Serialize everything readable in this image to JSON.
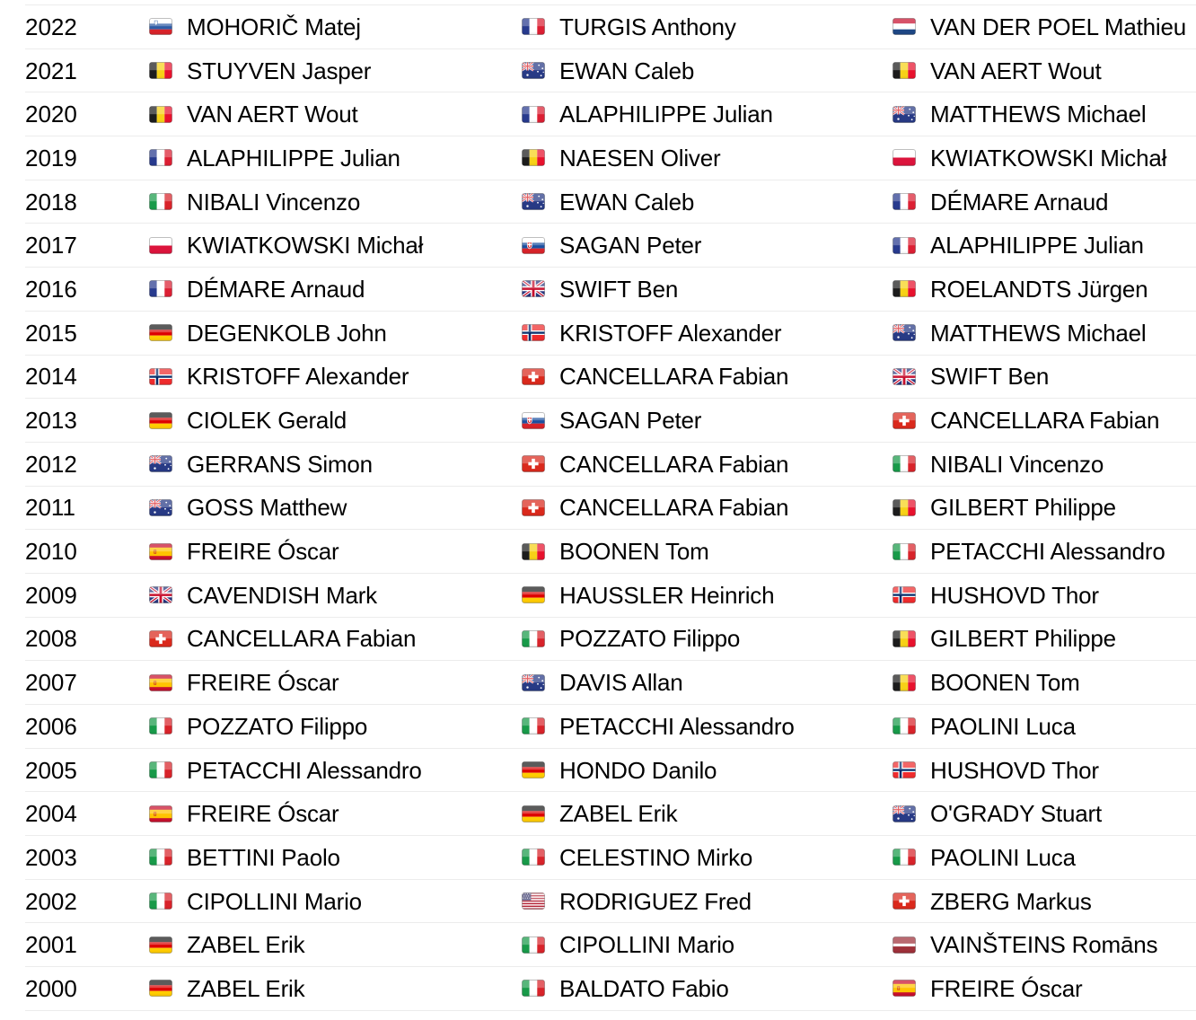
{
  "page": {
    "background_color": "#ffffff",
    "divider_color": "#ececec",
    "text_color": "#000000"
  },
  "table": {
    "description": "Race podium winners by year, columns: year, winner, second, third",
    "rows": [
      {
        "year": "2022",
        "podium": [
          {
            "flag": "si",
            "country": "Slovenia",
            "name": "MOHORIČ Matej"
          },
          {
            "flag": "fr",
            "country": "France",
            "name": "TURGIS Anthony"
          },
          {
            "flag": "nl",
            "country": "Netherlands",
            "name": "VAN DER POEL Mathieu"
          }
        ]
      },
      {
        "year": "2021",
        "podium": [
          {
            "flag": "be",
            "country": "Belgium",
            "name": "STUYVEN Jasper"
          },
          {
            "flag": "au",
            "country": "Australia",
            "name": "EWAN Caleb"
          },
          {
            "flag": "be",
            "country": "Belgium",
            "name": "VAN AERT Wout"
          }
        ]
      },
      {
        "year": "2020",
        "podium": [
          {
            "flag": "be",
            "country": "Belgium",
            "name": "VAN AERT Wout"
          },
          {
            "flag": "fr",
            "country": "France",
            "name": "ALAPHILIPPE Julian"
          },
          {
            "flag": "au",
            "country": "Australia",
            "name": "MATTHEWS Michael"
          }
        ]
      },
      {
        "year": "2019",
        "podium": [
          {
            "flag": "fr",
            "country": "France",
            "name": "ALAPHILIPPE Julian"
          },
          {
            "flag": "be",
            "country": "Belgium",
            "name": "NAESEN Oliver"
          },
          {
            "flag": "pl",
            "country": "Poland",
            "name": "KWIATKOWSKI Michał"
          }
        ]
      },
      {
        "year": "2018",
        "podium": [
          {
            "flag": "it",
            "country": "Italy",
            "name": "NIBALI Vincenzo"
          },
          {
            "flag": "au",
            "country": "Australia",
            "name": "EWAN Caleb"
          },
          {
            "flag": "fr",
            "country": "France",
            "name": "DÉMARE Arnaud"
          }
        ]
      },
      {
        "year": "2017",
        "podium": [
          {
            "flag": "pl",
            "country": "Poland",
            "name": "KWIATKOWSKI Michał"
          },
          {
            "flag": "sk",
            "country": "Slovakia",
            "name": "SAGAN Peter"
          },
          {
            "flag": "fr",
            "country": "France",
            "name": "ALAPHILIPPE Julian"
          }
        ]
      },
      {
        "year": "2016",
        "podium": [
          {
            "flag": "fr",
            "country": "France",
            "name": "DÉMARE Arnaud"
          },
          {
            "flag": "gb",
            "country": "Great Britain",
            "name": "SWIFT Ben"
          },
          {
            "flag": "be",
            "country": "Belgium",
            "name": "ROELANDTS Jürgen"
          }
        ]
      },
      {
        "year": "2015",
        "podium": [
          {
            "flag": "de",
            "country": "Germany",
            "name": "DEGENKOLB John"
          },
          {
            "flag": "no",
            "country": "Norway",
            "name": "KRISTOFF Alexander"
          },
          {
            "flag": "au",
            "country": "Australia",
            "name": "MATTHEWS Michael"
          }
        ]
      },
      {
        "year": "2014",
        "podium": [
          {
            "flag": "no",
            "country": "Norway",
            "name": "KRISTOFF Alexander"
          },
          {
            "flag": "ch",
            "country": "Switzerland",
            "name": "CANCELLARA Fabian"
          },
          {
            "flag": "gb",
            "country": "Great Britain",
            "name": "SWIFT Ben"
          }
        ]
      },
      {
        "year": "2013",
        "podium": [
          {
            "flag": "de",
            "country": "Germany",
            "name": "CIOLEK Gerald"
          },
          {
            "flag": "sk",
            "country": "Slovakia",
            "name": "SAGAN Peter"
          },
          {
            "flag": "ch",
            "country": "Switzerland",
            "name": "CANCELLARA Fabian"
          }
        ]
      },
      {
        "year": "2012",
        "podium": [
          {
            "flag": "au",
            "country": "Australia",
            "name": "GERRANS Simon"
          },
          {
            "flag": "ch",
            "country": "Switzerland",
            "name": "CANCELLARA Fabian"
          },
          {
            "flag": "it",
            "country": "Italy",
            "name": "NIBALI Vincenzo"
          }
        ]
      },
      {
        "year": "2011",
        "podium": [
          {
            "flag": "au",
            "country": "Australia",
            "name": "GOSS Matthew"
          },
          {
            "flag": "ch",
            "country": "Switzerland",
            "name": "CANCELLARA Fabian"
          },
          {
            "flag": "be",
            "country": "Belgium",
            "name": "GILBERT Philippe"
          }
        ]
      },
      {
        "year": "2010",
        "podium": [
          {
            "flag": "es",
            "country": "Spain",
            "name": "FREIRE Óscar"
          },
          {
            "flag": "be",
            "country": "Belgium",
            "name": "BOONEN Tom"
          },
          {
            "flag": "it",
            "country": "Italy",
            "name": "PETACCHI Alessandro"
          }
        ]
      },
      {
        "year": "2009",
        "podium": [
          {
            "flag": "gb",
            "country": "Great Britain",
            "name": "CAVENDISH Mark"
          },
          {
            "flag": "de",
            "country": "Germany",
            "name": "HAUSSLER Heinrich"
          },
          {
            "flag": "no",
            "country": "Norway",
            "name": "HUSHOVD Thor"
          }
        ]
      },
      {
        "year": "2008",
        "podium": [
          {
            "flag": "ch",
            "country": "Switzerland",
            "name": "CANCELLARA Fabian"
          },
          {
            "flag": "it",
            "country": "Italy",
            "name": "POZZATO Filippo"
          },
          {
            "flag": "be",
            "country": "Belgium",
            "name": "GILBERT Philippe"
          }
        ]
      },
      {
        "year": "2007",
        "podium": [
          {
            "flag": "es",
            "country": "Spain",
            "name": "FREIRE Óscar"
          },
          {
            "flag": "au",
            "country": "Australia",
            "name": "DAVIS Allan"
          },
          {
            "flag": "be",
            "country": "Belgium",
            "name": "BOONEN Tom"
          }
        ]
      },
      {
        "year": "2006",
        "podium": [
          {
            "flag": "it",
            "country": "Italy",
            "name": "POZZATO Filippo"
          },
          {
            "flag": "it",
            "country": "Italy",
            "name": "PETACCHI Alessandro"
          },
          {
            "flag": "it",
            "country": "Italy",
            "name": "PAOLINI Luca"
          }
        ]
      },
      {
        "year": "2005",
        "podium": [
          {
            "flag": "it",
            "country": "Italy",
            "name": "PETACCHI Alessandro"
          },
          {
            "flag": "de",
            "country": "Germany",
            "name": "HONDO Danilo"
          },
          {
            "flag": "no",
            "country": "Norway",
            "name": "HUSHOVD Thor"
          }
        ]
      },
      {
        "year": "2004",
        "podium": [
          {
            "flag": "es",
            "country": "Spain",
            "name": "FREIRE Óscar"
          },
          {
            "flag": "de",
            "country": "Germany",
            "name": "ZABEL Erik"
          },
          {
            "flag": "au",
            "country": "Australia",
            "name": "O'GRADY Stuart"
          }
        ]
      },
      {
        "year": "2003",
        "podium": [
          {
            "flag": "it",
            "country": "Italy",
            "name": "BETTINI Paolo"
          },
          {
            "flag": "it",
            "country": "Italy",
            "name": "CELESTINO Mirko"
          },
          {
            "flag": "it",
            "country": "Italy",
            "name": "PAOLINI Luca"
          }
        ]
      },
      {
        "year": "2002",
        "podium": [
          {
            "flag": "it",
            "country": "Italy",
            "name": "CIPOLLINI Mario"
          },
          {
            "flag": "us",
            "country": "United States",
            "name": "RODRIGUEZ Fred"
          },
          {
            "flag": "ch",
            "country": "Switzerland",
            "name": "ZBERG Markus"
          }
        ]
      },
      {
        "year": "2001",
        "podium": [
          {
            "flag": "de",
            "country": "Germany",
            "name": "ZABEL Erik"
          },
          {
            "flag": "it",
            "country": "Italy",
            "name": "CIPOLLINI Mario"
          },
          {
            "flag": "lv",
            "country": "Latvia",
            "name": "VAINŠTEINS Romāns"
          }
        ]
      },
      {
        "year": "2000",
        "podium": [
          {
            "flag": "de",
            "country": "Germany",
            "name": "ZABEL Erik"
          },
          {
            "flag": "it",
            "country": "Italy",
            "name": "BALDATO Fabio"
          },
          {
            "flag": "es",
            "country": "Spain",
            "name": "FREIRE Óscar"
          }
        ]
      }
    ]
  }
}
